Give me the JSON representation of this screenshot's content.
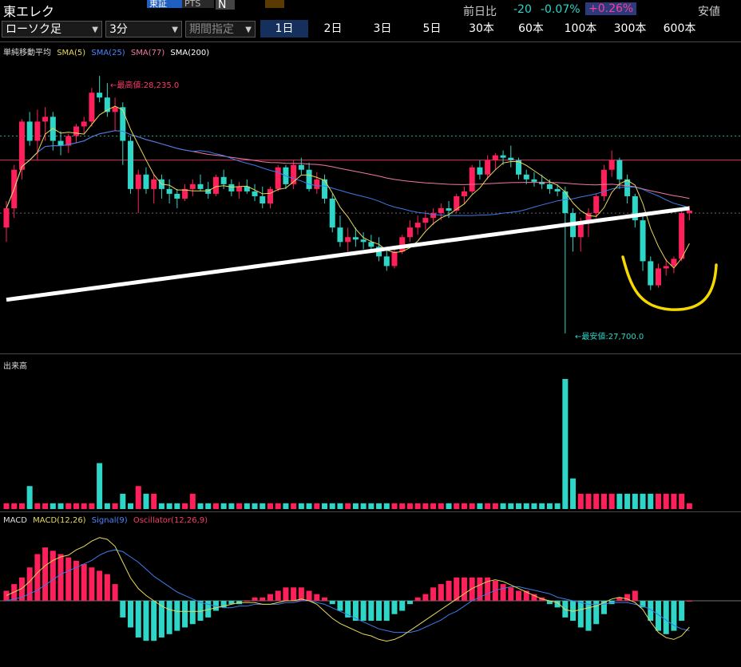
{
  "header": {
    "title": "東エレク",
    "market_tabs": [
      "東証",
      "PTS",
      "N"
    ],
    "market_extra": "",
    "change_label": "前日比",
    "change_value": "-20",
    "change_pct": "-0.07%",
    "change_badge": "+0.26%",
    "low_label": "安値"
  },
  "controls": {
    "chart_type": "ローソク足",
    "interval": "3分",
    "period": "期間指定",
    "ranges": [
      "1日",
      "2日",
      "3日",
      "5日",
      "30本",
      "60本",
      "100本",
      "300本",
      "600本"
    ],
    "active_range": "1日"
  },
  "colors": {
    "up": "#ff1f5a",
    "down": "#2ed6c8",
    "sma5": "#e8d85a",
    "sma25": "#3d7be8",
    "sma77": "#f07aa0",
    "sma200": "#ffffff",
    "annotation": "#f4d800"
  },
  "price_panel": {
    "legend_title": "単純移動平均",
    "legend": [
      {
        "label": "SMA(5)",
        "color": "#e8d85a"
      },
      {
        "label": "SMA(25)",
        "color": "#4a86ff"
      },
      {
        "label": "SMA(77)",
        "color": "#f07aa0"
      },
      {
        "label": "SMA(200)",
        "color": "#ffffff"
      }
    ],
    "high_label": "最高値:28,235.0",
    "low_label": "最安値:27,700.0"
  },
  "volume_panel": {
    "legend_title": "出来高"
  },
  "macd_panel": {
    "legend_title": "MACD",
    "legend": [
      {
        "label": "MACD(12,26)",
        "color": "#e8d85a"
      },
      {
        "label": "Signal(9)",
        "color": "#4a86ff"
      },
      {
        "label": "Oscillator(12,26,9)",
        "color": "#ff3a6a"
      }
    ]
  },
  "chart_data": {
    "type": "candlestick",
    "candles": [
      [
        27920,
        27975,
        27890,
        27960
      ],
      [
        27960,
        28050,
        27940,
        28040
      ],
      [
        28040,
        28145,
        28020,
        28140
      ],
      [
        28140,
        28160,
        28090,
        28100
      ],
      [
        28100,
        28165,
        28060,
        28140
      ],
      [
        28140,
        28170,
        28100,
        28150
      ],
      [
        28150,
        28160,
        28080,
        28100
      ],
      [
        28100,
        28120,
        28070,
        28090
      ],
      [
        28090,
        28115,
        28075,
        28110
      ],
      [
        28110,
        28135,
        28095,
        28130
      ],
      [
        28130,
        28150,
        28115,
        28140
      ],
      [
        28140,
        28210,
        28130,
        28200
      ],
      [
        28200,
        28235,
        28180,
        28190
      ],
      [
        28190,
        28220,
        28150,
        28160
      ],
      [
        28160,
        28190,
        28120,
        28170
      ],
      [
        28170,
        28180,
        28050,
        28100
      ],
      [
        28100,
        28110,
        27990,
        28000
      ],
      [
        28000,
        28040,
        27950,
        28030
      ],
      [
        28030,
        28045,
        27990,
        28000
      ],
      [
        28000,
        28030,
        27970,
        28020
      ],
      [
        28020,
        28030,
        27980,
        28000
      ],
      [
        28000,
        28020,
        27970,
        27990
      ],
      [
        27990,
        28000,
        27960,
        27980
      ],
      [
        27980,
        28010,
        27975,
        28000
      ],
      [
        28000,
        28020,
        27985,
        28010
      ],
      [
        28010,
        28030,
        27995,
        28000
      ],
      [
        28000,
        28015,
        27980,
        27990
      ],
      [
        27990,
        28030,
        27985,
        28025
      ],
      [
        28025,
        28040,
        28000,
        28010
      ],
      [
        28010,
        28020,
        27985,
        27995
      ],
      [
        27995,
        28015,
        27980,
        28005
      ],
      [
        28005,
        28020,
        27990,
        27995
      ],
      [
        27995,
        28010,
        27975,
        27985
      ],
      [
        27985,
        28005,
        27960,
        27970
      ],
      [
        27970,
        28005,
        27960,
        28000
      ],
      [
        28000,
        28050,
        27995,
        28045
      ],
      [
        28045,
        28050,
        28000,
        28010
      ],
      [
        28010,
        28060,
        28000,
        28050
      ],
      [
        28050,
        28065,
        28030,
        28040
      ],
      [
        28040,
        28055,
        27995,
        28000
      ],
      [
        28000,
        28035,
        27990,
        28020
      ],
      [
        28020,
        28030,
        27970,
        27980
      ],
      [
        27980,
        27990,
        27910,
        27920
      ],
      [
        27920,
        27945,
        27880,
        27890
      ],
      [
        27890,
        27920,
        27870,
        27900
      ],
      [
        27900,
        27920,
        27880,
        27895
      ],
      [
        27895,
        27910,
        27875,
        27890
      ],
      [
        27890,
        27905,
        27870,
        27880
      ],
      [
        27880,
        27900,
        27850,
        27860
      ],
      [
        27860,
        27880,
        27830,
        27840
      ],
      [
        27840,
        27880,
        27835,
        27870
      ],
      [
        27870,
        27905,
        27865,
        27900
      ],
      [
        27900,
        27935,
        27890,
        27920
      ],
      [
        27920,
        27945,
        27905,
        27930
      ],
      [
        27930,
        27955,
        27915,
        27940
      ],
      [
        27940,
        27960,
        27925,
        27950
      ],
      [
        27950,
        27970,
        27935,
        27960
      ],
      [
        27960,
        27975,
        27940,
        27955
      ],
      [
        27955,
        27990,
        27950,
        27985
      ],
      [
        27985,
        28005,
        27970,
        27995
      ],
      [
        27995,
        28050,
        27990,
        28045
      ],
      [
        28045,
        28060,
        28020,
        28030
      ],
      [
        28030,
        28070,
        28020,
        28060
      ],
      [
        28060,
        28075,
        28040,
        28070
      ],
      [
        28070,
        28080,
        28050,
        28065
      ],
      [
        28065,
        28090,
        28045,
        28060
      ],
      [
        28060,
        28065,
        28020,
        28030
      ],
      [
        28030,
        28040,
        28010,
        28020
      ],
      [
        28020,
        28035,
        28005,
        28015
      ],
      [
        28015,
        28030,
        28000,
        28010
      ],
      [
        28010,
        28020,
        27990,
        28000
      ],
      [
        28000,
        28010,
        27985,
        27995
      ],
      [
        27995,
        28005,
        27700,
        27950
      ],
      [
        27950,
        27960,
        27870,
        27900
      ],
      [
        27900,
        27940,
        27870,
        27930
      ],
      [
        27930,
        27960,
        27900,
        27950
      ],
      [
        27950,
        27990,
        27940,
        27985
      ],
      [
        27985,
        28050,
        27975,
        28040
      ],
      [
        28040,
        28080,
        28025,
        28060
      ],
      [
        28060,
        28065,
        28000,
        28020
      ],
      [
        28020,
        28030,
        27970,
        27985
      ],
      [
        27985,
        27990,
        27920,
        27935
      ],
      [
        27935,
        27945,
        27830,
        27850
      ],
      [
        27850,
        27860,
        27790,
        27800
      ],
      [
        27800,
        27845,
        27795,
        27835
      ],
      [
        27835,
        27855,
        27820,
        27840
      ],
      [
        27840,
        27860,
        27825,
        27855
      ],
      [
        27855,
        27960,
        27850,
        27950
      ],
      [
        27950,
        27965,
        27935,
        27955
      ]
    ],
    "volume": [
      1,
      1,
      1,
      3,
      1,
      1,
      1,
      1,
      1,
      1,
      1,
      1,
      6,
      1,
      1,
      2,
      1,
      3,
      2,
      2,
      1,
      1,
      1,
      1,
      2,
      1,
      1,
      1,
      1,
      1,
      1,
      1,
      1,
      1,
      1,
      1,
      1,
      1,
      1,
      1,
      1,
      1,
      1,
      1,
      1,
      1,
      1,
      1,
      1,
      1,
      1,
      1,
      1,
      1,
      1,
      1,
      1,
      1,
      1,
      1,
      1,
      1,
      1,
      1,
      1,
      1,
      1,
      1,
      1,
      1,
      1,
      1,
      17,
      4,
      2,
      2,
      2,
      2,
      2,
      2,
      2,
      2,
      2,
      2,
      2,
      2,
      2,
      2,
      1
    ],
    "macd": [
      0.3,
      0.5,
      0.7,
      1.1,
      1.6,
      2.0,
      2.3,
      2.5,
      2.6,
      2.9,
      3.1,
      3.4,
      3.6,
      3.5,
      3.1,
      2.2,
      1.3,
      0.7,
      0.3,
      0.0,
      -0.3,
      -0.5,
      -0.6,
      -0.6,
      -0.6,
      -0.6,
      -0.5,
      -0.4,
      -0.3,
      -0.2,
      -0.1,
      -0.1,
      -0.1,
      -0.2,
      -0.2,
      -0.1,
      0.0,
      0.0,
      0.1,
      0.0,
      -0.2,
      -0.6,
      -1.0,
      -1.3,
      -1.5,
      -1.7,
      -1.9,
      -2.0,
      -2.2,
      -2.3,
      -2.2,
      -2.0,
      -1.7,
      -1.4,
      -1.1,
      -0.8,
      -0.5,
      -0.2,
      0.1,
      0.4,
      0.7,
      0.9,
      1.1,
      1.2,
      1.1,
      0.9,
      0.7,
      0.5,
      0.3,
      0.1,
      0.0,
      -0.1,
      -0.5,
      -0.6,
      -0.5,
      -0.4,
      -0.3,
      -0.1,
      0.1,
      0.2,
      0.1,
      -0.1,
      -0.5,
      -1.2,
      -1.8,
      -2.1,
      -2.2,
      -2.0,
      -1.5
    ],
    "signal": [
      0.0,
      0.1,
      0.2,
      0.4,
      0.6,
      0.9,
      1.2,
      1.5,
      1.7,
      1.9,
      2.1,
      2.3,
      2.6,
      2.8,
      2.9,
      2.8,
      2.5,
      2.2,
      1.8,
      1.4,
      1.1,
      0.8,
      0.5,
      0.3,
      0.1,
      -0.1,
      -0.2,
      -0.3,
      -0.4,
      -0.4,
      -0.3,
      -0.3,
      -0.2,
      -0.2,
      -0.2,
      -0.2,
      -0.1,
      -0.1,
      0.0,
      0.0,
      -0.1,
      -0.2,
      -0.4,
      -0.6,
      -0.8,
      -1.0,
      -1.2,
      -1.4,
      -1.6,
      -1.7,
      -1.8,
      -1.8,
      -1.8,
      -1.7,
      -1.5,
      -1.3,
      -1.1,
      -0.8,
      -0.6,
      -0.3,
      0.0,
      0.2,
      0.4,
      0.6,
      0.7,
      0.8,
      0.8,
      0.7,
      0.6,
      0.5,
      0.4,
      0.2,
      0.1,
      0.0,
      -0.1,
      -0.2,
      -0.2,
      -0.2,
      -0.1,
      -0.1,
      -0.1,
      -0.2,
      -0.3,
      -0.5,
      -0.8,
      -1.1,
      -1.4,
      -1.6,
      -1.7
    ],
    "osc": [
      0.3,
      0.5,
      0.7,
      1.0,
      1.4,
      1.6,
      1.5,
      1.4,
      1.3,
      1.2,
      1.1,
      1.0,
      0.9,
      0.8,
      0.5,
      -0.5,
      -0.8,
      -1.1,
      -1.2,
      -1.2,
      -1.1,
      -1.0,
      -0.9,
      -0.8,
      -0.7,
      -0.6,
      -0.5,
      -0.3,
      -0.2,
      -0.1,
      -0.1,
      0.0,
      0.1,
      0.1,
      0.2,
      0.3,
      0.4,
      0.4,
      0.4,
      0.3,
      0.2,
      0.1,
      -0.1,
      -0.3,
      -0.5,
      -0.6,
      -0.6,
      -0.6,
      -0.6,
      -0.6,
      -0.4,
      -0.3,
      -0.1,
      0.1,
      0.2,
      0.4,
      0.5,
      0.6,
      0.7,
      0.7,
      0.7,
      0.7,
      0.7,
      0.6,
      0.5,
      0.4,
      0.3,
      0.3,
      0.2,
      0.1,
      -0.1,
      -0.2,
      -0.5,
      -0.6,
      -0.8,
      -0.9,
      -0.7,
      -0.4,
      -0.1,
      0.1,
      0.2,
      0.3,
      -0.2,
      -0.6,
      -0.9,
      -1.0,
      -0.9,
      -0.6,
      0.0
    ]
  }
}
